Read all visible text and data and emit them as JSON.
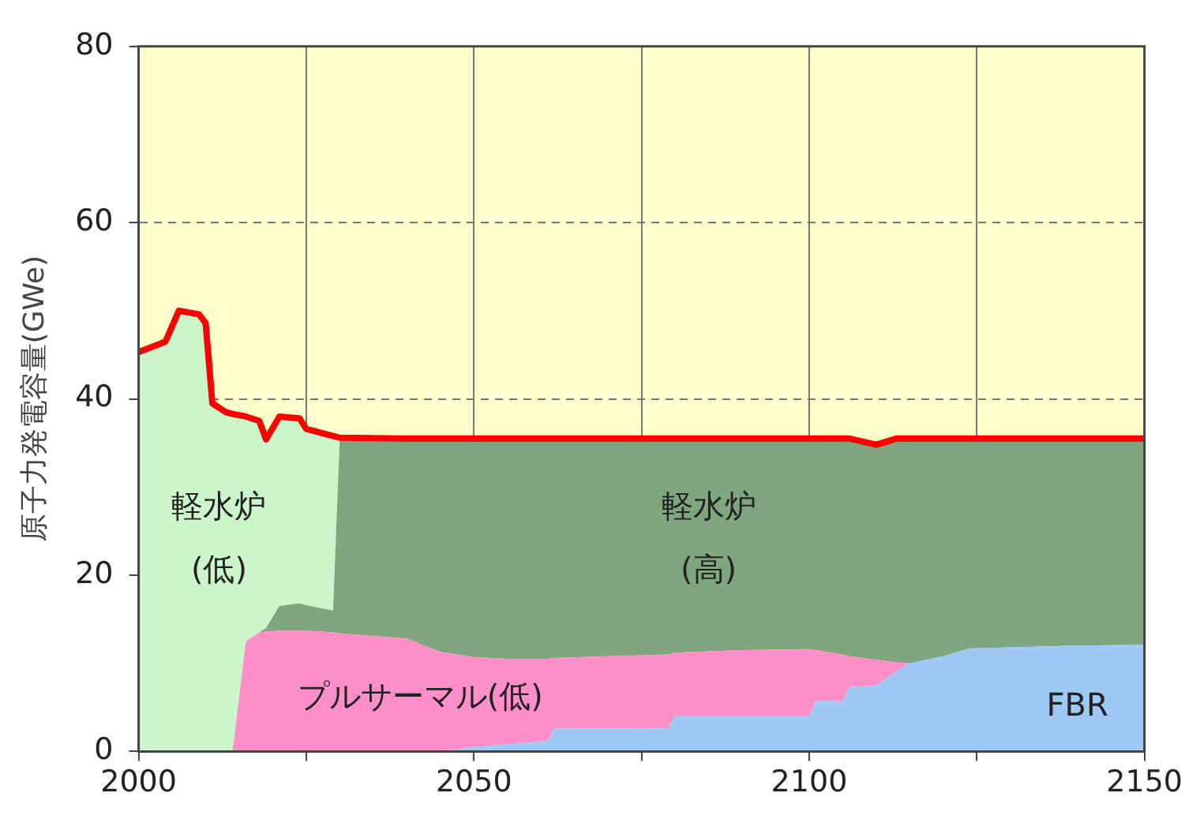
{
  "chart_data": {
    "type": "area",
    "ylabel": "原子力発電容量(GWe)",
    "stacked": true,
    "x": [
      2000,
      2004,
      2006,
      2009,
      2010,
      2011,
      2013,
      2014,
      2016,
      2018,
      2019,
      2021,
      2024,
      2025,
      2029,
      2030,
      2040,
      2045,
      2050,
      2055,
      2061,
      2062,
      2070,
      2079,
      2080,
      2090,
      2100,
      2101,
      2105,
      2106,
      2110,
      2113,
      2115,
      2120,
      2124,
      2130,
      2140,
      2150
    ],
    "series": [
      {
        "name": "FBR",
        "color": "#9ec8f5",
        "values": [
          0,
          0,
          0,
          0,
          0,
          0,
          0,
          0,
          0,
          0,
          0,
          0,
          0,
          0,
          0,
          0,
          0,
          0,
          0.5,
          0.8,
          1.2,
          2.6,
          2.6,
          2.6,
          4,
          4,
          4,
          5.7,
          5.7,
          7.3,
          7.5,
          9.1,
          10,
          10.8,
          11.7,
          11.8,
          12,
          12.1
        ]
      },
      {
        "name": "プルサーマル(低)",
        "color": "#ff8fc8",
        "values": [
          0,
          0,
          0,
          0,
          0,
          0,
          0,
          0,
          12.5,
          13.5,
          13.6,
          13.7,
          13.7,
          13.7,
          13.5,
          13.4,
          12.8,
          11.3,
          10.2,
          9.7,
          9.3,
          8,
          8.2,
          8.4,
          7.2,
          7.5,
          7.6,
          5.8,
          5.3,
          3.5,
          2.9,
          1,
          0,
          0,
          0,
          0,
          0,
          0
        ]
      },
      {
        "name": "軽水炉\n(高)",
        "color": "#7fa67f",
        "values": [
          0,
          0,
          0,
          0,
          0,
          0,
          0,
          0,
          0,
          0,
          0.4,
          2.8,
          3.1,
          2.9,
          2.5,
          22.2,
          22.7,
          24.2,
          24.8,
          25,
          25,
          24.9,
          24.7,
          24.5,
          24.3,
          24,
          23.9,
          24,
          24.5,
          24.7,
          24.4,
          25.4,
          25.5,
          24.7,
          23.8,
          23.7,
          23.5,
          23.4
        ]
      },
      {
        "name": "軽水炉\n(低)",
        "color": "#ccf5cc",
        "values": [
          45.3,
          46.5,
          50,
          49.6,
          48.6,
          39.5,
          38.5,
          38.3,
          25.5,
          24,
          21.4,
          21.5,
          21,
          20,
          19.8,
          0,
          0,
          0,
          0,
          0,
          0,
          0,
          0,
          0,
          0,
          0,
          0,
          0,
          0,
          0,
          0,
          0,
          0,
          0,
          0,
          0,
          0,
          0
        ]
      },
      {
        "type": "line",
        "color": "#ff0000",
        "values": [
          45.3,
          46.5,
          50,
          49.6,
          48.6,
          39.5,
          38.5,
          38.3,
          38,
          37.5,
          35.4,
          38,
          37.8,
          36.6,
          35.8,
          35.6,
          35.5,
          35.5,
          35.5,
          35.5,
          35.5,
          35.5,
          35.5,
          35.5,
          35.5,
          35.5,
          35.5,
          35.5,
          35.5,
          35.5,
          34.8,
          35.5,
          35.5,
          35.5,
          35.5,
          35.5,
          35.5,
          35.5
        ]
      }
    ],
    "xlim": [
      2000,
      2150
    ],
    "xticks": [
      2000,
      {
        "value": 2025,
        "label": null
      },
      2050,
      {
        "value": 2075,
        "label": null
      },
      2100,
      {
        "value": 2125,
        "label": null
      },
      2150
    ],
    "ylim": [
      0,
      80
    ],
    "yticks": [
      0,
      20,
      40,
      60,
      80
    ],
    "grid": true,
    "legend": false
  }
}
